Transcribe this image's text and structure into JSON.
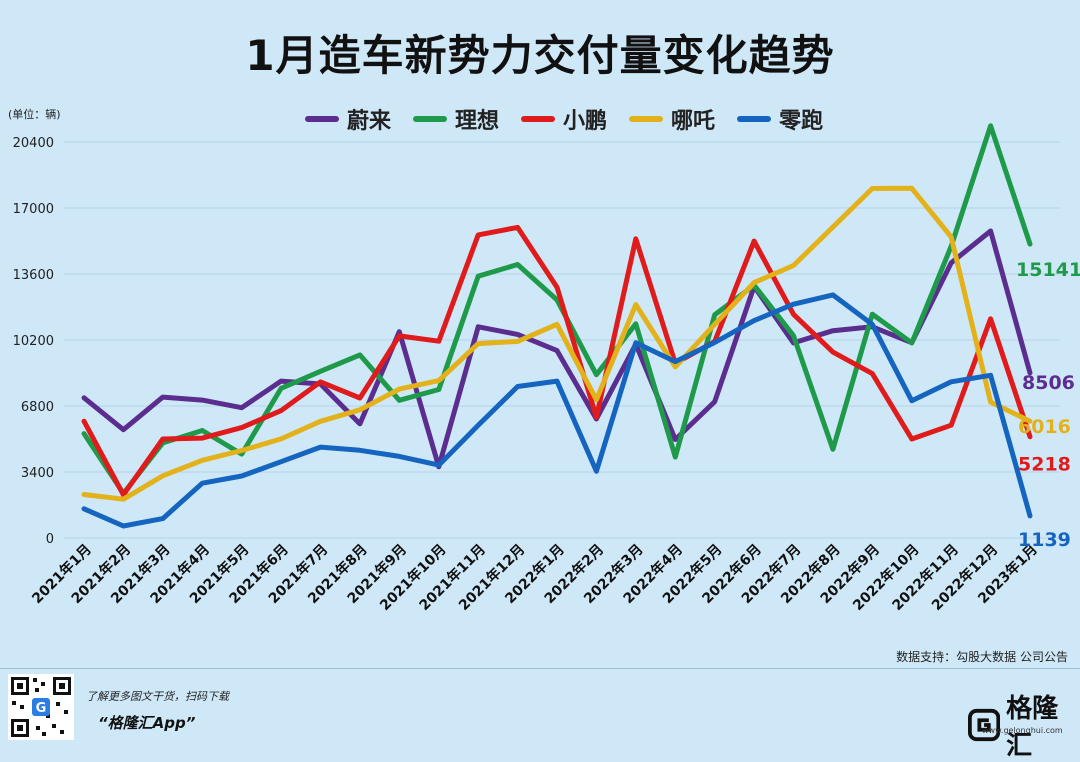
{
  "title": "1月造车新势力交付量变化趋势",
  "unit_label": "(单位：辆)",
  "source_text": "数据支持：勾股大数据  公司公告",
  "footer": {
    "tip": "了解更多图文干货，扫码下载",
    "app": "“格隆汇App”",
    "brand": "格隆汇",
    "brand_url": "www.gelonghui.com"
  },
  "chart_data": {
    "type": "line",
    "title": "1月造车新势力交付量变化趋势",
    "ylabel": "(单位：辆)",
    "ylim": [
      0,
      20400
    ],
    "yticks": [
      0,
      3400,
      6800,
      10200,
      13600,
      17000,
      20400
    ],
    "grid": true,
    "legend_position": "top",
    "categories": [
      "2021年1月",
      "2021年2月",
      "2021年3月",
      "2021年4月",
      "2021年5月",
      "2021年6月",
      "2021年7月",
      "2021年8月",
      "2021年9月",
      "2021年10月",
      "2021年11月",
      "2021年12月",
      "2022年1月",
      "2022年2月",
      "2022年3月",
      "2022年4月",
      "2022年5月",
      "2022年6月",
      "2022年7月",
      "2022年8月",
      "2022年9月",
      "2022年10月",
      "2022年11月",
      "2022年12月",
      "2023年1月"
    ],
    "series": [
      {
        "name": "蔚来",
        "color": "#5b2d8f",
        "values": [
          7225,
          5578,
          7257,
          7102,
          6711,
          8083,
          7931,
          5880,
          10628,
          3667,
          10878,
          10489,
          9652,
          6131,
          9985,
          5074,
          7024,
          12961,
          10052,
          10677,
          10878,
          10059,
          14178,
          15815,
          8506
        ]
      },
      {
        "name": "理想",
        "color": "#1f9a4a",
        "values": [
          5379,
          2300,
          4900,
          5539,
          4323,
          7713,
          8589,
          9433,
          7094,
          7649,
          13485,
          14087,
          12268,
          8414,
          11034,
          4167,
          11496,
          13024,
          10422,
          4571,
          11531,
          10052,
          15034,
          21233,
          15141
        ]
      },
      {
        "name": "小鹏",
        "color": "#e01b1b",
        "values": [
          6015,
          2223,
          5102,
          5147,
          5686,
          6565,
          8040,
          7214,
          10412,
          10138,
          15613,
          16000,
          12922,
          6225,
          15414,
          9002,
          10125,
          15295,
          11524,
          9578,
          8468,
          5101,
          5811,
          11292,
          5218
        ]
      },
      {
        "name": "哪吒",
        "color": "#e3b21b",
        "values": [
          2240,
          2000,
          3205,
          4005,
          4508,
          5107,
          6011,
          6604,
          7669,
          8107,
          10013,
          10127,
          11009,
          7117,
          12026,
          8813,
          11009,
          13157,
          14037,
          16017,
          18005,
          18016,
          15513,
          7000,
          6016
        ]
      },
      {
        "name": "零跑",
        "color": "#1565c0",
        "values": [
          1502,
          619,
          1000,
          2823,
          3195,
          3932,
          4681,
          4516,
          4202,
          3755,
          5806,
          7807,
          8085,
          3435,
          10059,
          9087,
          10069,
          11200,
          12044,
          12525,
          11005,
          7069,
          8045,
          8383,
          1139
        ]
      }
    ],
    "end_labels": [
      "8506",
      "15141",
      "5218",
      "6016",
      "1139"
    ]
  }
}
